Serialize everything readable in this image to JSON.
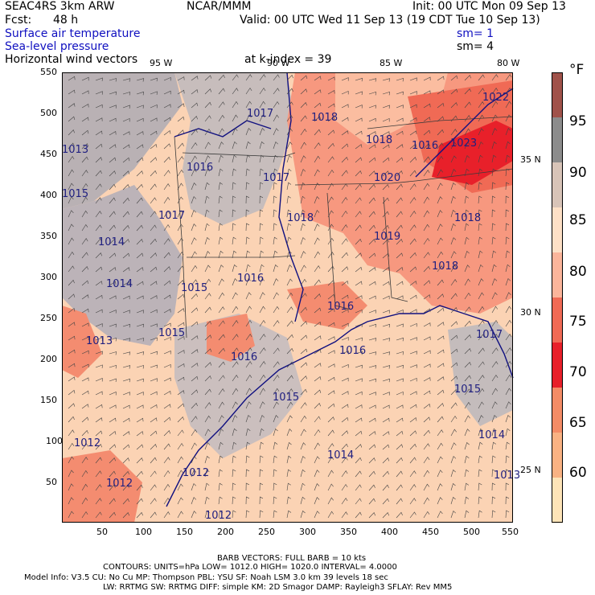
{
  "header": {
    "model": "SEAC4RS  3km ARW",
    "org": "NCAR/MMM",
    "init": "Init: 00 UTC Mon 09 Sep 13",
    "fcst_label": "Fcst:",
    "fcst_value": "48 h",
    "valid": "Valid: 00 UTC Wed 11 Sep 13 (19 CDT Tue 10 Sep 13)",
    "field1": "Surface air temperature",
    "field2": "Sea-level pressure",
    "field3": "Horizontal wind vectors",
    "sm1": "sm= 1",
    "sm2": "sm= 4",
    "k_index": "at k-index =  39"
  },
  "axes": {
    "x_ticks": [
      "50",
      "100",
      "150",
      "200",
      "250",
      "300",
      "350",
      "400",
      "450",
      "500",
      "550"
    ],
    "y_ticks": [
      "550",
      "500",
      "450",
      "400",
      "350",
      "300",
      "250",
      "200",
      "150",
      "100",
      "50"
    ],
    "lon_labels": [
      "95 W",
      "90 W",
      "85 W",
      "80 W"
    ],
    "lat_labels": [
      "35 N",
      "30 N",
      "25 N"
    ]
  },
  "colorbar": {
    "unit": "°F",
    "labels": [
      "95",
      "90",
      "85",
      "80",
      "75",
      "70",
      "65",
      "60"
    ],
    "colors": [
      "#a0524a",
      "#8c8c8c",
      "#d8c4b8",
      "#fde0c6",
      "#fbb59b",
      "#f06a55",
      "#e8202a",
      "#f48c66",
      "#f9b283",
      "#fde4b8"
    ]
  },
  "pressure_labels": [
    {
      "t": "H",
      "v": "1017"
    },
    {
      "t": "H",
      "v": "1018"
    },
    {
      "t": "H",
      "v": "1013"
    },
    {
      "t": "H",
      "v": "1015"
    },
    {
      "t": "H",
      "v": "1016"
    },
    {
      "t": "H",
      "v": "1017"
    },
    {
      "t": "H",
      "v": "1017"
    },
    {
      "t": "H",
      "v": "1018"
    },
    {
      "t": "H",
      "v": "1018"
    },
    {
      "t": "H",
      "v": "1020"
    },
    {
      "t": "H",
      "v": "1019"
    },
    {
      "t": "H",
      "v": "1018"
    },
    {
      "t": "H",
      "v": "1014"
    },
    {
      "t": "H",
      "v": "1014"
    },
    {
      "t": "H",
      "v": "1015"
    },
    {
      "t": "H",
      "v": "1016"
    },
    {
      "t": "H",
      "v": "1016"
    },
    {
      "t": "H",
      "v": "1015"
    },
    {
      "t": "H",
      "v": "1013"
    },
    {
      "t": "H",
      "v": "1016"
    },
    {
      "t": "H",
      "v": "1016"
    },
    {
      "t": "H",
      "v": "1017"
    },
    {
      "t": "H",
      "v": "1015"
    },
    {
      "t": "H",
      "v": "1015"
    },
    {
      "t": "H",
      "v": "1014"
    },
    {
      "t": "H",
      "v": "1012"
    },
    {
      "t": "H",
      "v": "1012"
    },
    {
      "t": "H",
      "v": "1012"
    },
    {
      "t": "H",
      "v": "1014"
    },
    {
      "t": "H",
      "v": "1012"
    },
    {
      "t": "H",
      "v": "1013"
    },
    {
      "t": "H",
      "v": "1016"
    },
    {
      "t": "H",
      "v": "1022"
    },
    {
      "t": "H",
      "v": "1023"
    },
    {
      "t": "H",
      "v": "1018"
    }
  ],
  "footer": {
    "barb": "BARB VECTORS:  FULL BARB = 10 kts",
    "contours": "CONTOURS:  UNITS=hPa   LOW=   1012.0        HIGH=  1020.0        INTERVAL=     4.0000",
    "model_info": "Model Info: V3.5         CU: No Cu       MP: Thompson       PBL: YSU         SF: Noah LSM       3.0 km   39 levels   18 sec",
    "model_info2": "LW: RRTMG     SW: RRTMG   DIFF: simple KM: 2D Smagor DAMP: Rayleigh3   SFLAY: Rev MM5"
  }
}
